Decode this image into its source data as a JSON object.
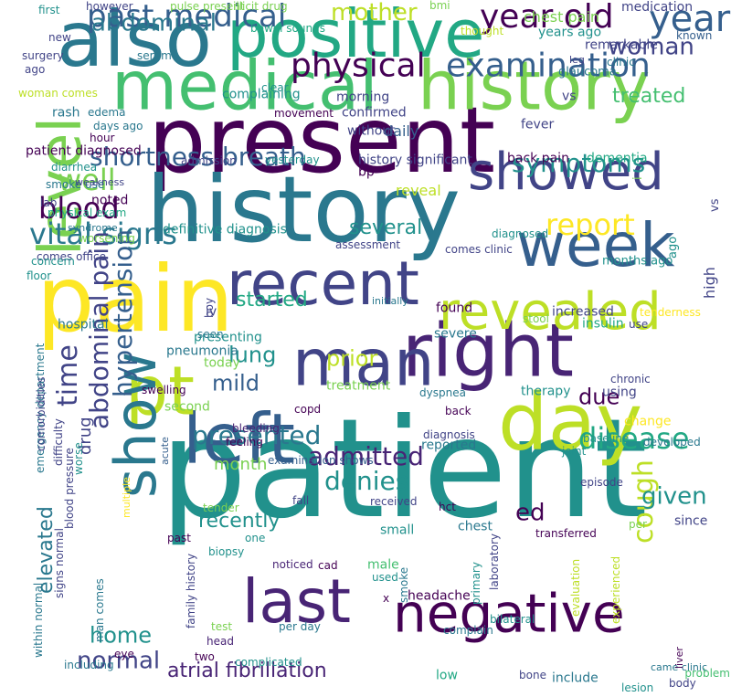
{
  "colors": {
    "background": "#ffffff",
    "palette": [
      "#440154",
      "#482475",
      "#414487",
      "#355f8d",
      "#2a788e",
      "#21918c",
      "#22a884",
      "#44bf70",
      "#7ad151",
      "#bddf26",
      "#fde725"
    ]
  },
  "words": [
    {
      "text": "patient",
      "color": "#21918c"
    },
    {
      "text": "present",
      "color": "#440154"
    },
    {
      "text": "history",
      "color": "#2a788e"
    },
    {
      "text": "medical",
      "color": "#44bf70"
    },
    {
      "text": "history",
      "color": "#7ad151"
    },
    {
      "text": "positive",
      "color": "#22a884"
    },
    {
      "text": "also",
      "color": "#2a788e"
    },
    {
      "text": "pain",
      "color": "#fde725"
    },
    {
      "text": "right",
      "color": "#482475"
    },
    {
      "text": "man",
      "color": "#414487"
    },
    {
      "text": "day",
      "color": "#bddf26"
    },
    {
      "text": "negative",
      "color": "#440154"
    },
    {
      "text": "left",
      "color": "#355f8d"
    },
    {
      "text": "pt",
      "color": "#bddf26"
    },
    {
      "text": "recent",
      "color": "#414487"
    },
    {
      "text": "week",
      "color": "#355f8d"
    },
    {
      "text": "showed",
      "color": "#414487"
    },
    {
      "text": "revealed",
      "color": "#bddf26"
    },
    {
      "text": "level",
      "color": "#7ad151"
    },
    {
      "text": "last",
      "color": "#482475"
    },
    {
      "text": "show",
      "color": "#2a788e"
    },
    {
      "text": "past medical",
      "color": "#355f8d"
    },
    {
      "text": "examination",
      "color": "#355f8d"
    },
    {
      "text": "physical",
      "color": "#440154"
    },
    {
      "text": "year old",
      "color": "#440154"
    },
    {
      "text": "year",
      "color": "#355f8d"
    },
    {
      "text": "woman",
      "color": "#414487"
    },
    {
      "text": "abdominal",
      "color": "#2a788e"
    },
    {
      "text": "mother",
      "color": "#bddf26"
    },
    {
      "text": "shortness breath",
      "color": "#355f8d"
    },
    {
      "text": "vital signs",
      "color": "#2a788e"
    },
    {
      "text": "blood",
      "color": "#440154"
    },
    {
      "text": "well",
      "color": "#7ad151"
    },
    {
      "text": "symptoms",
      "color": "#21918c"
    },
    {
      "text": "report",
      "color": "#fde725"
    },
    {
      "text": "disease",
      "color": "#22a884"
    },
    {
      "text": "cough",
      "color": "#bddf26"
    },
    {
      "text": "time",
      "color": "#414487"
    },
    {
      "text": "abdominal pain",
      "color": "#414487"
    },
    {
      "text": "hypertension",
      "color": "#355f8d"
    },
    {
      "text": "presented",
      "color": "#2a788e"
    },
    {
      "text": "admitted",
      "color": "#482475"
    },
    {
      "text": "denies",
      "color": "#21918c"
    },
    {
      "text": "normal",
      "color": "#414487"
    },
    {
      "text": "atrial fibrillation",
      "color": "#482475"
    },
    {
      "text": "elevated",
      "color": "#2a788e"
    },
    {
      "text": "home",
      "color": "#21918c"
    },
    {
      "text": "treated",
      "color": "#44bf70"
    },
    {
      "text": "several",
      "color": "#21918c"
    },
    {
      "text": "lung",
      "color": "#21918c"
    },
    {
      "text": "prior",
      "color": "#bddf26"
    },
    {
      "text": "mild",
      "color": "#355f8d"
    },
    {
      "text": "due",
      "color": "#440154"
    },
    {
      "text": "started",
      "color": "#22a884"
    },
    {
      "text": "recently",
      "color": "#21918c"
    },
    {
      "text": "given",
      "color": "#21918c"
    },
    {
      "text": "ed",
      "color": "#440154"
    },
    {
      "text": "drug",
      "color": "#414487"
    },
    {
      "text": "month",
      "color": "#7ad151"
    },
    {
      "text": "medication",
      "color": "#414487"
    },
    {
      "text": "chest pain",
      "color": "#7ad151"
    },
    {
      "text": "years ago",
      "color": "#21918c"
    },
    {
      "text": "remarkable",
      "color": "#414487"
    },
    {
      "text": "known",
      "color": "#355f8d"
    },
    {
      "text": "clinic",
      "color": "#2a788e"
    },
    {
      "text": "fever",
      "color": "#414487"
    },
    {
      "text": "vs",
      "color": "#414487"
    },
    {
      "text": "daily",
      "color": "#355f8d"
    },
    {
      "text": "history significant",
      "color": "#414487"
    },
    {
      "text": "back pain",
      "color": "#440154"
    },
    {
      "text": "dementia",
      "color": "#22a884"
    },
    {
      "text": "bp",
      "color": "#440154"
    },
    {
      "text": "reveal",
      "color": "#bddf26"
    },
    {
      "text": "definitive diagnosis",
      "color": "#21918c"
    },
    {
      "text": "diagnosed",
      "color": "#21918c"
    },
    {
      "text": "months ago",
      "color": "#21918c"
    },
    {
      "text": "comes clinic",
      "color": "#414487"
    },
    {
      "text": "assessment",
      "color": "#414487"
    },
    {
      "text": "initially",
      "color": "#2a788e"
    },
    {
      "text": "hospital",
      "color": "#2a788e"
    },
    {
      "text": "found",
      "color": "#440154"
    },
    {
      "text": "severe",
      "color": "#2a788e"
    },
    {
      "text": "increased",
      "color": "#414487"
    },
    {
      "text": "tenderness",
      "color": "#fde725"
    },
    {
      "text": "stool",
      "color": "#7ad151"
    },
    {
      "text": "insulin",
      "color": "#22a884"
    },
    {
      "text": "use",
      "color": "#414487"
    },
    {
      "text": "high",
      "color": "#414487"
    },
    {
      "text": "chronic",
      "color": "#414487"
    },
    {
      "text": "therapy",
      "color": "#21918c"
    },
    {
      "text": "dyspnea",
      "color": "#2a788e"
    },
    {
      "text": "treatment",
      "color": "#7ad151"
    },
    {
      "text": "swelling",
      "color": "#440154"
    },
    {
      "text": "second",
      "color": "#7ad151"
    },
    {
      "text": "copd",
      "color": "#440154"
    },
    {
      "text": "bleeding",
      "color": "#482475"
    },
    {
      "text": "back",
      "color": "#440154"
    },
    {
      "text": "using",
      "color": "#414487"
    },
    {
      "text": "reported",
      "color": "#2a788e"
    },
    {
      "text": "diagnosis",
      "color": "#414487"
    },
    {
      "text": "baseline",
      "color": "#21918c"
    },
    {
      "text": "developed",
      "color": "#2a788e"
    },
    {
      "text": "change",
      "color": "#fde725"
    },
    {
      "text": "joint",
      "color": "#21918c"
    },
    {
      "text": "episode",
      "color": "#414487"
    },
    {
      "text": "feeling",
      "color": "#440154"
    },
    {
      "text": "examination shows",
      "color": "#355f8d"
    },
    {
      "text": "fall",
      "color": "#414487"
    },
    {
      "text": "biopsy",
      "color": "#21918c"
    },
    {
      "text": "tender",
      "color": "#7ad151"
    },
    {
      "text": "received",
      "color": "#414487"
    },
    {
      "text": "hct",
      "color": "#440154"
    },
    {
      "text": "small",
      "color": "#21918c"
    },
    {
      "text": "chest",
      "color": "#2a788e"
    },
    {
      "text": "transferred",
      "color": "#440154"
    },
    {
      "text": "per",
      "color": "#7ad151"
    },
    {
      "text": "since",
      "color": "#414487"
    },
    {
      "text": "past",
      "color": "#440154"
    },
    {
      "text": "one",
      "color": "#21918c"
    },
    {
      "text": "cad",
      "color": "#440154"
    },
    {
      "text": "noticed",
      "color": "#482475"
    },
    {
      "text": "male",
      "color": "#44bf70"
    },
    {
      "text": "used",
      "color": "#21918c"
    },
    {
      "text": "x",
      "color": "#440154"
    },
    {
      "text": "smoke",
      "color": "#2a788e"
    },
    {
      "text": "primary",
      "color": "#21918c"
    },
    {
      "text": "laboratory",
      "color": "#414487"
    },
    {
      "text": "evaluation",
      "color": "#bddf26"
    },
    {
      "text": "experienced",
      "color": "#bddf26"
    },
    {
      "text": "headache",
      "color": "#440154"
    },
    {
      "text": "low",
      "color": "#22a884"
    },
    {
      "text": "bilateral",
      "color": "#21918c"
    },
    {
      "text": "complain",
      "color": "#2a788e"
    },
    {
      "text": "include",
      "color": "#2a788e"
    },
    {
      "text": "lesion",
      "color": "#21918c"
    },
    {
      "text": "bone",
      "color": "#414487"
    },
    {
      "text": "body",
      "color": "#414487"
    },
    {
      "text": "problem",
      "color": "#44bf70"
    },
    {
      "text": "came clinic",
      "color": "#2a788e"
    },
    {
      "text": "liver",
      "color": "#440154"
    },
    {
      "text": "test",
      "color": "#7ad151"
    },
    {
      "text": "per day",
      "color": "#2a788e"
    },
    {
      "text": "head",
      "color": "#482475"
    },
    {
      "text": "two",
      "color": "#440154"
    },
    {
      "text": "complicated",
      "color": "#21918c"
    },
    {
      "text": "including",
      "color": "#2a788e"
    },
    {
      "text": "eye",
      "color": "#440154"
    },
    {
      "text": "family history",
      "color": "#414487"
    },
    {
      "text": "man comes",
      "color": "#2a788e"
    },
    {
      "text": "within normal",
      "color": "#2a788e"
    },
    {
      "text": "signs normal",
      "color": "#414487"
    },
    {
      "text": "emergency department",
      "color": "#2a788e"
    },
    {
      "text": "blood pressure",
      "color": "#414487"
    },
    {
      "text": "difficulty",
      "color": "#414487"
    },
    {
      "text": "comorbidities",
      "color": "#414487"
    },
    {
      "text": "worse",
      "color": "#21918c"
    },
    {
      "text": "multiple",
      "color": "#fde725"
    },
    {
      "text": "acute",
      "color": "#355f8d"
    },
    {
      "text": "boy",
      "color": "#414487"
    },
    {
      "text": "pneumonia",
      "color": "#2a788e"
    },
    {
      "text": "presenting",
      "color": "#21918c"
    },
    {
      "text": "iv",
      "color": "#414487"
    },
    {
      "text": "seen",
      "color": "#2a788e"
    },
    {
      "text": "today",
      "color": "#7ad151"
    },
    {
      "text": "comes office",
      "color": "#414487"
    },
    {
      "text": "floor",
      "color": "#21918c"
    },
    {
      "text": "physical exam",
      "color": "#22a884"
    },
    {
      "text": "worsening",
      "color": "#7ad151"
    },
    {
      "text": "concern",
      "color": "#21918c"
    },
    {
      "text": "yesterday",
      "color": "#21918c"
    },
    {
      "text": "admission",
      "color": "#414487"
    },
    {
      "text": "syndrome",
      "color": "#2a788e"
    },
    {
      "text": "lab",
      "color": "#414487"
    },
    {
      "text": "noted",
      "color": "#440154"
    },
    {
      "text": "patient diagnosed",
      "color": "#440154"
    },
    {
      "text": "smoke use",
      "color": "#2a788e"
    },
    {
      "text": "weakness",
      "color": "#414487"
    },
    {
      "text": "diarrhea",
      "color": "#21918c"
    },
    {
      "text": "days ago",
      "color": "#2a788e"
    },
    {
      "text": "hour",
      "color": "#440154"
    },
    {
      "text": "edema",
      "color": "#2a788e"
    },
    {
      "text": "rash",
      "color": "#2a788e"
    },
    {
      "text": "complaining",
      "color": "#21918c"
    },
    {
      "text": "confirmed",
      "color": "#414487"
    },
    {
      "text": "morning",
      "color": "#414487"
    },
    {
      "text": "without",
      "color": "#414487"
    },
    {
      "text": "clear",
      "color": "#21918c"
    },
    {
      "text": "movement",
      "color": "#440154"
    },
    {
      "text": "woman comes",
      "color": "#bddf26"
    },
    {
      "text": "surgery",
      "color": "#414487"
    },
    {
      "text": "serum",
      "color": "#2a788e"
    },
    {
      "text": "ago",
      "color": "#414487"
    },
    {
      "text": "new",
      "color": "#414487"
    },
    {
      "text": "first",
      "color": "#21918c"
    },
    {
      "text": "however",
      "color": "#414487"
    },
    {
      "text": "illicit drug",
      "color": "#7ad151"
    },
    {
      "text": "pulse present",
      "color": "#7ad151"
    },
    {
      "text": "bowel sounds",
      "color": "#22a884"
    },
    {
      "text": "bmi",
      "color": "#7ad151"
    },
    {
      "text": "thought",
      "color": "#bddf26"
    },
    {
      "text": "glaucoma",
      "color": "#2a788e"
    },
    {
      "text": "leg",
      "color": "#414487"
    },
    {
      "text": "i",
      "color": "#7ad151"
    },
    {
      "text": "vs",
      "color": "#414487"
    },
    {
      "text": "ago",
      "color": "#21918c"
    }
  ]
}
